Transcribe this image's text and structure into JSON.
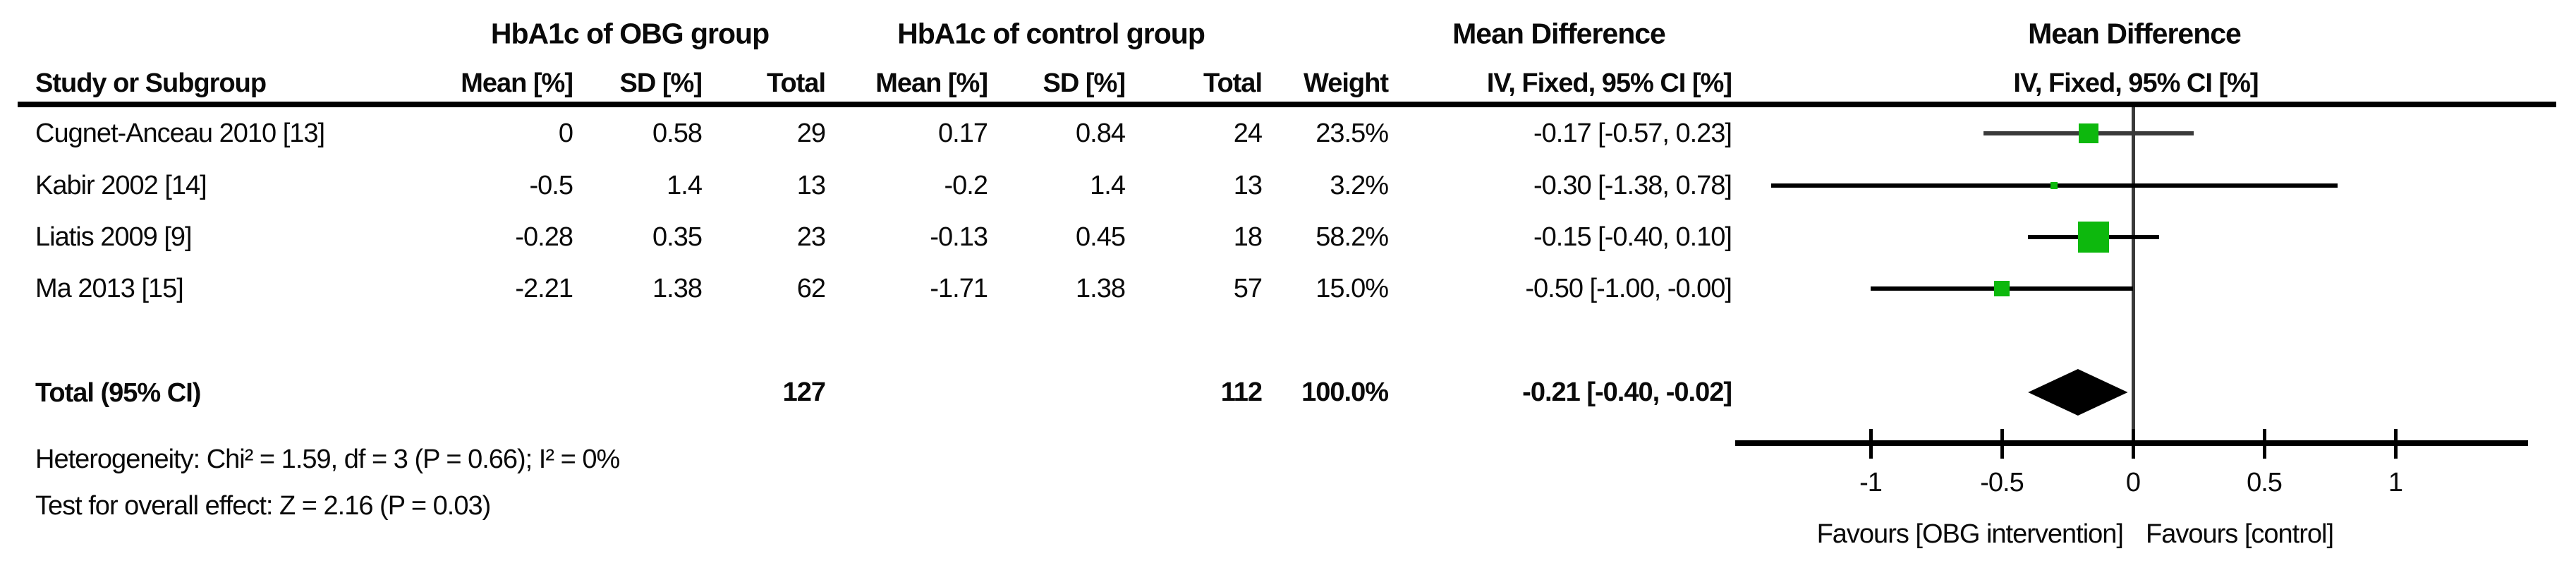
{
  "header": {
    "group1_title": "HbA1c of OBG group",
    "group2_title": "HbA1c of control group",
    "md_text_title": "Mean Difference",
    "md_plot_title": "Mean Difference",
    "study_col": "Study or Subgroup",
    "cols": [
      "Mean [%]",
      "SD [%]",
      "Total",
      "Mean [%]",
      "SD [%]",
      "Total",
      "Weight",
      "IV, Fixed, 95% CI [%]"
    ],
    "plot_col": "IV, Fixed, 95% CI [%]"
  },
  "rows": [
    {
      "study": "Cugnet-Anceau 2010 [13]",
      "cells": [
        "0",
        "0.58",
        "29",
        "0.17",
        "0.84",
        "24",
        "23.5%",
        "-0.17 [-0.57, 0.23]"
      ]
    },
    {
      "study": "Kabir 2002 [14]",
      "cells": [
        "-0.5",
        "1.4",
        "13",
        "-0.2",
        "1.4",
        "13",
        "3.2%",
        "-0.30 [-1.38, 0.78]"
      ]
    },
    {
      "study": "Liatis 2009 [9]",
      "cells": [
        "-0.28",
        "0.35",
        "23",
        "-0.13",
        "0.45",
        "18",
        "58.2%",
        "-0.15 [-0.40, 0.10]"
      ]
    },
    {
      "study": "Ma 2013 [15]",
      "cells": [
        "-2.21",
        "1.38",
        "62",
        "-1.71",
        "1.38",
        "57",
        "15.0%",
        "-0.50 [-1.00, -0.00]"
      ]
    }
  ],
  "total": {
    "label": "Total (95% CI)",
    "cells": [
      "",
      "",
      "127",
      "",
      "",
      "112",
      "100.0%",
      "-0.21 [-0.40, -0.02]"
    ]
  },
  "footer": {
    "heterogeneity": "Heterogeneity: Chi² = 1.59, df = 3 (P = 0.66); I² = 0%",
    "overall_effect": "Test for overall effect: Z = 2.16 (P = 0.03)"
  },
  "chart_data": {
    "type": "forest",
    "title": "Mean Difference, IV, Fixed, 95% CI [%]",
    "x_axis": {
      "ticks": [
        -1,
        -0.5,
        0,
        0.5,
        1
      ],
      "labels": [
        "-1",
        "-0.5",
        "0",
        "0.5",
        "1"
      ],
      "range": [
        -1.5,
        1.5
      ],
      "zero_reference_line": true
    },
    "studies": [
      {
        "name": "Cugnet-Anceau 2010 [13]",
        "md": -0.17,
        "lo": -0.57,
        "hi": 0.23,
        "weight": 23.5
      },
      {
        "name": "Kabir 2002 [14]",
        "md": -0.3,
        "lo": -1.38,
        "hi": 0.78,
        "weight": 3.2
      },
      {
        "name": "Liatis 2009 [9]",
        "md": -0.15,
        "lo": -0.4,
        "hi": 0.1,
        "weight": 58.2
      },
      {
        "name": "Ma 2013 [15]",
        "md": -0.5,
        "lo": -1.0,
        "hi": -0.0,
        "weight": 15.0
      }
    ],
    "total": {
      "name": "Total (95% CI)",
      "md": -0.21,
      "lo": -0.4,
      "hi": -0.02,
      "weight": 100.0
    },
    "favours_left": "Favours [OBG intervention]",
    "favours_right": "Favours [control]",
    "legend_position": "below-axis",
    "colors": {
      "square": "#0db80d",
      "ci_line": "#000000",
      "row1_ci_line": "#3a3a3a",
      "zero_line": "#3a3a3a",
      "diamond": "#000000",
      "axis": "#000000",
      "text": "#0a0a0a"
    }
  }
}
